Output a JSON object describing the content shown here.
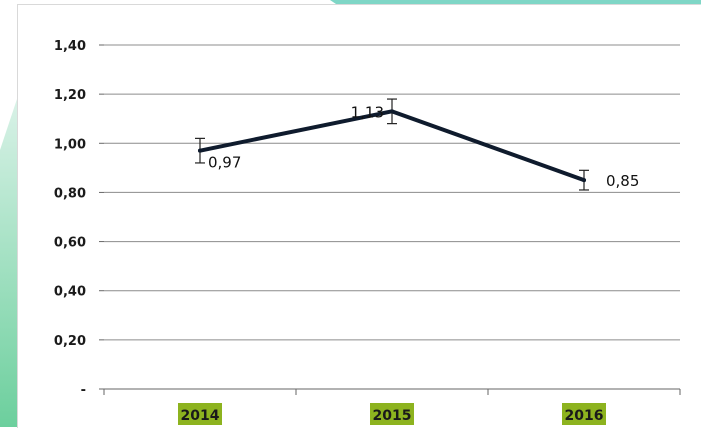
{
  "chart_data": {
    "type": "line",
    "title": "",
    "xlabel": "",
    "ylabel": "",
    "categories": [
      "2014",
      "2015",
      "2016"
    ],
    "series": [
      {
        "values": [
          0.97,
          1.13,
          0.85
        ],
        "labels": [
          "0,97",
          "1,13",
          "0,85"
        ],
        "error": [
          0.05,
          0.05,
          0.04
        ]
      }
    ],
    "ylim": [
      0,
      1.4
    ],
    "yticks": [
      {
        "value": 0,
        "label": "-"
      },
      {
        "value": 0.2,
        "label": "0,20"
      },
      {
        "value": 0.4,
        "label": "0,40"
      },
      {
        "value": 0.6,
        "label": "0,60"
      },
      {
        "value": 0.8,
        "label": "0,80"
      },
      {
        "value": 1.0,
        "label": "1,00"
      },
      {
        "value": 1.2,
        "label": "1,20"
      },
      {
        "value": 1.4,
        "label": "1,40"
      }
    ],
    "grid": true,
    "legend": "none",
    "colors": {
      "line": "#0f1b2d",
      "grid": "#8c8c8c",
      "category_highlight": "#8db31f",
      "background_accent": "#7fd6c6"
    }
  }
}
